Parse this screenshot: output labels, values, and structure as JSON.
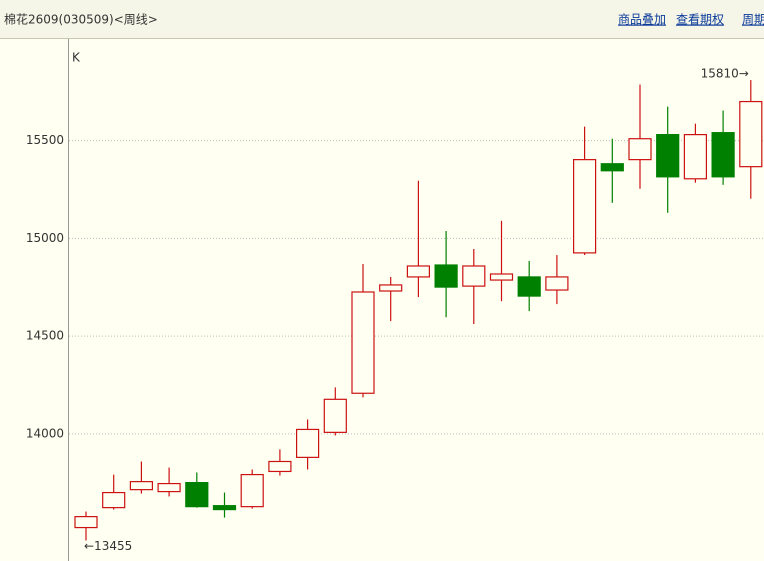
{
  "header": {
    "title": "棉花2609(030509)<周线>",
    "links": [
      "商品叠加",
      "查看期权",
      "周期"
    ]
  },
  "chart_data": {
    "type": "candlestick",
    "axis_label": "K",
    "annotations": {
      "high": "15810→",
      "low": "←13455"
    },
    "up_color": "#cc1111",
    "down_color": "#008000",
    "grid": true,
    "ylim": [
      13350,
      16020
    ],
    "yticks": [
      14000,
      14500,
      15000,
      15500
    ],
    "open": [
      13521,
      13623,
      13715,
      13705,
      13751,
      13633,
      13628,
      13808,
      13880,
      14008,
      14208,
      14731,
      14803,
      14864,
      14756,
      14787,
      14803,
      14736,
      14926,
      15382,
      15403,
      15531,
      15305,
      15541,
      15367
    ],
    "high": [
      13603,
      13792,
      13859,
      13828,
      13803,
      13700,
      13818,
      13921,
      14074,
      14238,
      14869,
      14803,
      15295,
      15038,
      14946,
      15090,
      14885,
      14915,
      15572,
      15510,
      15787,
      15674,
      15587,
      15654,
      15810
    ],
    "low": [
      13455,
      13613,
      13695,
      13680,
      13623,
      13572,
      13618,
      13787,
      13818,
      13992,
      14187,
      14577,
      14700,
      14597,
      14562,
      14679,
      14628,
      14664,
      14915,
      15182,
      15254,
      15131,
      15285,
      15274,
      15203
    ],
    "close": [
      13577,
      13700,
      13756,
      13746,
      13628,
      13613,
      13792,
      13859,
      14023,
      14177,
      14726,
      14762,
      14859,
      14751,
      14859,
      14818,
      14705,
      14803,
      15403,
      15346,
      15510,
      15315,
      15531,
      15315,
      15700
    ]
  }
}
